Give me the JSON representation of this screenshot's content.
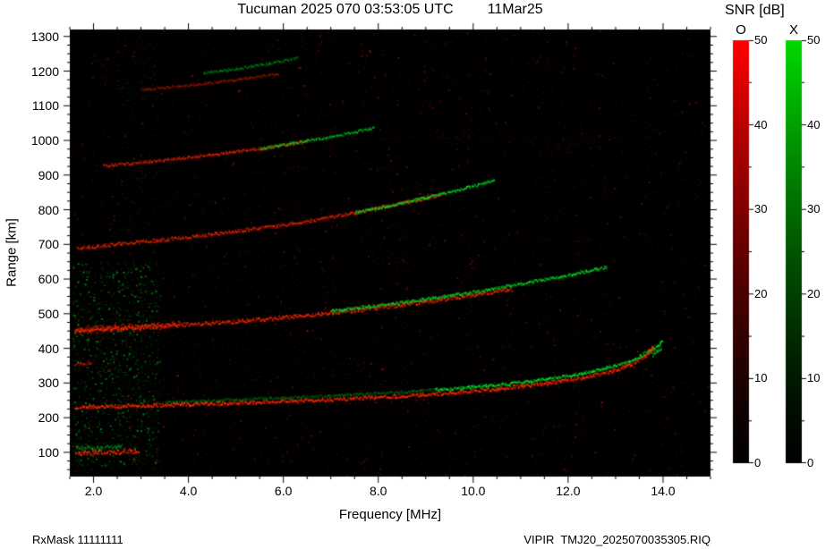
{
  "header": {
    "title": "Tucuman 2025 070 03:53:05 UTC",
    "date": "11Mar25"
  },
  "axes": {
    "x_label": "Frequency [MHz]",
    "y_label": "Range [km]"
  },
  "footer": {
    "left": "RxMask 11111111",
    "right": "VIPIR  TMJ20_2025070035305.RIQ"
  },
  "colorbar": {
    "label": "SNR [dB]",
    "bars": [
      {
        "name": "O",
        "color": "#ff0000"
      },
      {
        "name": "X",
        "color": "#00d900"
      }
    ],
    "ticks": [
      {
        "v": 0,
        "label": "0"
      },
      {
        "v": 10,
        "label": "10"
      },
      {
        "v": 20,
        "label": "20"
      },
      {
        "v": 30,
        "label": "30"
      },
      {
        "v": 40,
        "label": "40"
      },
      {
        "v": 50,
        "label": "50"
      }
    ]
  },
  "chart_data": {
    "type": "heatmap",
    "title": "Tucuman 2025 070 03:53:05 UTC 11Mar25",
    "xlabel": "Frequency [MHz]",
    "ylabel": "Range [km]",
    "snr_label": "SNR [dB]",
    "xlim": [
      1.5,
      15.0
    ],
    "ylim": [
      30,
      1320
    ],
    "snr_range": [
      0,
      50
    ],
    "x_ticks": {
      "values": [
        2,
        4,
        6,
        8,
        10,
        12,
        14
      ],
      "labels": [
        "2.0",
        "4.0",
        "6.0",
        "8.0",
        "10.0",
        "12.0",
        "14.0"
      ],
      "minor_step": 0.5
    },
    "y_ticks": {
      "values": [
        100,
        200,
        300,
        400,
        500,
        600,
        700,
        800,
        900,
        1000,
        1100,
        1200,
        1300
      ],
      "labels": [
        "100",
        "200",
        "300",
        "400",
        "500",
        "600",
        "700",
        "800",
        "900",
        "1000",
        "1100",
        "1200",
        "1300"
      ],
      "minor_step": 25
    },
    "colors": {
      "o_mode": "#ff2800",
      "x_mode": "#00e628",
      "background": "#000000"
    },
    "traces": [
      {
        "name": "e-region-echo-o",
        "mode": "O",
        "width_km": 18,
        "bright": 1.0,
        "speckle": 0.9,
        "points": [
          [
            1.62,
            97
          ],
          [
            2.0,
            99
          ],
          [
            2.5,
            101
          ],
          [
            2.95,
            104
          ]
        ]
      },
      {
        "name": "e-region-echo-x",
        "mode": "X",
        "width_km": 16,
        "bright": 0.45,
        "speckle": 1.2,
        "points": [
          [
            1.62,
            112
          ],
          [
            2.1,
            114
          ],
          [
            2.6,
            117
          ]
        ]
      },
      {
        "name": "left-edge-echo-o",
        "mode": "O",
        "width_km": 12,
        "bright": 0.55,
        "speckle": 1.0,
        "points": [
          [
            1.6,
            352
          ],
          [
            1.95,
            357
          ]
        ]
      },
      {
        "name": "f-trace-hop1-o",
        "mode": "O",
        "width_km": 13,
        "bright": 1.0,
        "speckle": 0.8,
        "points": [
          [
            1.6,
            230
          ],
          [
            2.5,
            233
          ],
          [
            4.0,
            238
          ],
          [
            5.5,
            244
          ],
          [
            7.0,
            252
          ],
          [
            8.5,
            262
          ],
          [
            9.5,
            271
          ],
          [
            10.5,
            283
          ],
          [
            11.5,
            298
          ],
          [
            12.3,
            315
          ],
          [
            12.9,
            333
          ],
          [
            13.3,
            352
          ],
          [
            13.55,
            372
          ],
          [
            13.7,
            392
          ],
          [
            13.78,
            408
          ]
        ]
      },
      {
        "name": "f-trace-hop1-x",
        "mode": "X",
        "width_km": 10,
        "bright": 0.95,
        "speckle": 0.7,
        "points": [
          [
            9.2,
            280
          ],
          [
            10.0,
            288
          ],
          [
            10.8,
            298
          ],
          [
            11.6,
            312
          ],
          [
            12.4,
            330
          ],
          [
            13.0,
            350
          ],
          [
            13.4,
            370
          ],
          [
            13.7,
            392
          ],
          [
            13.9,
            410
          ],
          [
            13.98,
            422
          ]
        ]
      },
      {
        "name": "f-trace-hop1-x-weak",
        "mode": "X",
        "width_km": 9,
        "bright": 0.3,
        "speckle": 1.3,
        "points": [
          [
            3.5,
            244
          ],
          [
            5.0,
            252
          ],
          [
            6.5,
            260
          ],
          [
            8.0,
            270
          ],
          [
            9.2,
            280
          ]
        ]
      },
      {
        "name": "f-trace-hop2-o",
        "mode": "O",
        "width_km": 14,
        "bright": 0.92,
        "speckle": 0.9,
        "points": [
          [
            1.6,
            452
          ],
          [
            2.5,
            458
          ],
          [
            3.5,
            465
          ],
          [
            4.5,
            473
          ],
          [
            5.5,
            483
          ],
          [
            6.5,
            495
          ],
          [
            7.5,
            509
          ],
          [
            8.5,
            525
          ],
          [
            9.3,
            540
          ],
          [
            10.1,
            556
          ],
          [
            10.8,
            570
          ]
        ]
      },
      {
        "name": "f-trace-hop2-left-band-o",
        "mode": "O",
        "width_km": 26,
        "bright": 0.7,
        "speckle": 1.5,
        "points": [
          [
            1.6,
            452
          ],
          [
            2.2,
            456
          ],
          [
            3.0,
            462
          ],
          [
            3.8,
            468
          ]
        ]
      },
      {
        "name": "f-trace-hop2-x",
        "mode": "X",
        "width_km": 10,
        "bright": 0.85,
        "speckle": 0.8,
        "points": [
          [
            7.0,
            508
          ],
          [
            7.8,
            520
          ],
          [
            8.6,
            534
          ],
          [
            9.4,
            550
          ],
          [
            10.2,
            566
          ],
          [
            11.0,
            586
          ],
          [
            11.8,
            606
          ],
          [
            12.4,
            622
          ],
          [
            12.8,
            634
          ]
        ]
      },
      {
        "name": "f-trace-hop3-o",
        "mode": "O",
        "width_km": 12,
        "bright": 0.8,
        "speckle": 0.9,
        "points": [
          [
            1.65,
            688
          ],
          [
            2.6,
            702
          ],
          [
            3.4,
            712
          ],
          [
            4.2,
            724
          ],
          [
            5.0,
            738
          ],
          [
            5.8,
            752
          ],
          [
            6.6,
            768
          ],
          [
            7.4,
            788
          ],
          [
            8.2,
            810
          ],
          [
            8.9,
            830
          ],
          [
            9.4,
            846
          ]
        ]
      },
      {
        "name": "f-trace-hop3-x",
        "mode": "X",
        "width_km": 9,
        "bright": 0.8,
        "speckle": 0.8,
        "points": [
          [
            7.5,
            792
          ],
          [
            8.2,
            810
          ],
          [
            8.9,
            832
          ],
          [
            9.6,
            854
          ],
          [
            10.1,
            872
          ],
          [
            10.45,
            884
          ]
        ]
      },
      {
        "name": "f-trace-hop4-o",
        "mode": "O",
        "width_km": 10,
        "bright": 0.72,
        "speckle": 1.0,
        "points": [
          [
            2.2,
            926
          ],
          [
            3.0,
            936
          ],
          [
            3.8,
            948
          ],
          [
            4.6,
            960
          ],
          [
            5.4,
            974
          ],
          [
            6.0,
            986
          ],
          [
            6.5,
            998
          ]
        ]
      },
      {
        "name": "f-trace-hop4-x",
        "mode": "X",
        "width_km": 9,
        "bright": 0.65,
        "speckle": 1.0,
        "points": [
          [
            5.5,
            976
          ],
          [
            6.2,
            992
          ],
          [
            6.9,
            1008
          ],
          [
            7.5,
            1024
          ],
          [
            7.9,
            1036
          ]
        ]
      },
      {
        "name": "f-trace-hop5-o",
        "mode": "O",
        "width_km": 9,
        "bright": 0.4,
        "speckle": 1.3,
        "points": [
          [
            3.0,
            1146
          ],
          [
            3.8,
            1156
          ],
          [
            4.6,
            1168
          ],
          [
            5.3,
            1180
          ],
          [
            5.9,
            1192
          ]
        ]
      },
      {
        "name": "f-trace-hop5-x",
        "mode": "X",
        "width_km": 9,
        "bright": 0.38,
        "speckle": 1.3,
        "points": [
          [
            4.3,
            1194
          ],
          [
            5.0,
            1206
          ],
          [
            5.7,
            1222
          ],
          [
            6.3,
            1238
          ]
        ]
      },
      {
        "name": "tail-blob-o",
        "mode": "O",
        "width_km": 16,
        "bright": 0.85,
        "speckle": 1.4,
        "points": [
          [
            13.6,
            375
          ],
          [
            13.8,
            400
          ]
        ]
      },
      {
        "name": "tail-blob-x",
        "mode": "X",
        "width_km": 16,
        "bright": 0.8,
        "speckle": 1.4,
        "points": [
          [
            13.75,
            380
          ],
          [
            13.95,
            402
          ]
        ]
      }
    ],
    "spread_bands": [
      {
        "range_km": 1008,
        "freq": [
          6.6,
          14.9
        ],
        "alpha": 0.12
      },
      {
        "range_km": 712,
        "freq": [
          9.6,
          14.9
        ],
        "alpha": 0.09
      }
    ],
    "noise": {
      "red_count": 10000,
      "green_count": 2000,
      "red_columns": [
        2.9,
        4.2,
        5.05,
        6.3,
        7.0,
        7.8,
        8.45,
        9.05,
        9.9,
        11.45,
        12.25
      ],
      "red_column_count": 220,
      "green_left_cluster": {
        "freq": [
          1.55,
          3.4
        ],
        "range": [
          60,
          650
        ],
        "count": 1500
      },
      "green_high_left": {
        "freq": [
          2.5,
          3.4
        ],
        "range": [
          620,
          1300
        ],
        "count": 220
      }
    }
  }
}
